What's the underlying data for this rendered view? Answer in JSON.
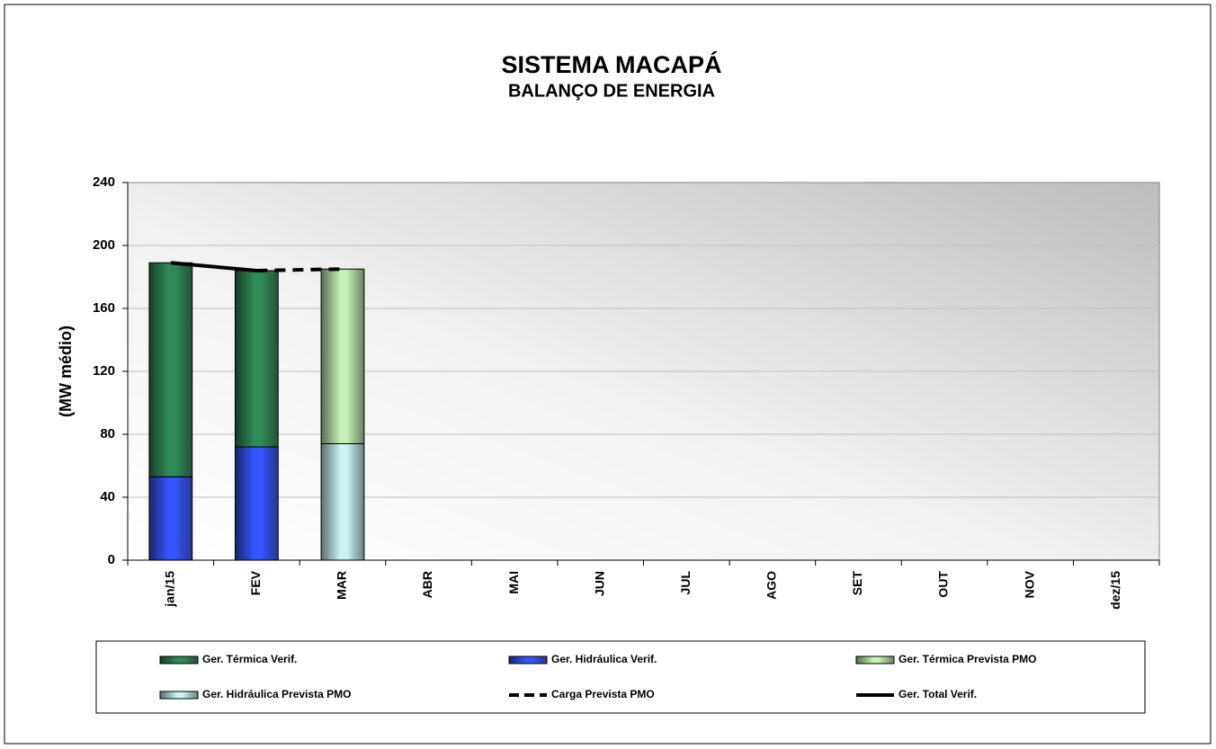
{
  "chart_data": {
    "type": "bar",
    "stacked": true,
    "title": "SISTEMA MACAPÁ",
    "subtitle": "BALANÇO DE ENERGIA",
    "y_label": "(MW médio)",
    "categories": [
      "jan/15",
      "FEV",
      "MAR",
      "ABR",
      "MAI",
      "JUN",
      "JUL",
      "AGO",
      "SET",
      "OUT",
      "NOV",
      "dez/15"
    ],
    "series": [
      {
        "name": "Ger. Térmica Verif.",
        "type": "bar",
        "color": "#2e8b57",
        "values": [
          136,
          112,
          null,
          null,
          null,
          null,
          null,
          null,
          null,
          null,
          null,
          null
        ]
      },
      {
        "name": "Ger. Hidráulica Verif.",
        "type": "bar",
        "color": "#3355ff",
        "values": [
          53,
          72,
          null,
          null,
          null,
          null,
          null,
          null,
          null,
          null,
          null,
          null
        ]
      },
      {
        "name": "Ger. Térmica Prevista PMO",
        "type": "bar",
        "color": "#c6f0b4",
        "values": [
          null,
          null,
          111,
          null,
          null,
          null,
          null,
          null,
          null,
          null,
          null,
          null
        ]
      },
      {
        "name": "Ger. Hidráulica Prevista PMO",
        "type": "bar",
        "color": "#c8f4f4",
        "values": [
          null,
          null,
          74,
          null,
          null,
          null,
          null,
          null,
          null,
          null,
          null,
          null
        ]
      },
      {
        "name": "Carga Prevista PMO",
        "type": "line",
        "dashed": true,
        "color": "#000000",
        "values": [
          null,
          184,
          185,
          null,
          null,
          null,
          null,
          null,
          null,
          null,
          null,
          null
        ]
      },
      {
        "name": "Ger. Total Verif.",
        "type": "line",
        "dashed": false,
        "color": "#000000",
        "values": [
          189,
          184,
          null,
          null,
          null,
          null,
          null,
          null,
          null,
          null,
          null,
          null
        ]
      }
    ],
    "ylim": [
      0,
      240
    ],
    "yticks": [
      0,
      40,
      80,
      120,
      160,
      200,
      240
    ],
    "grid": true,
    "legend": "bottom"
  }
}
